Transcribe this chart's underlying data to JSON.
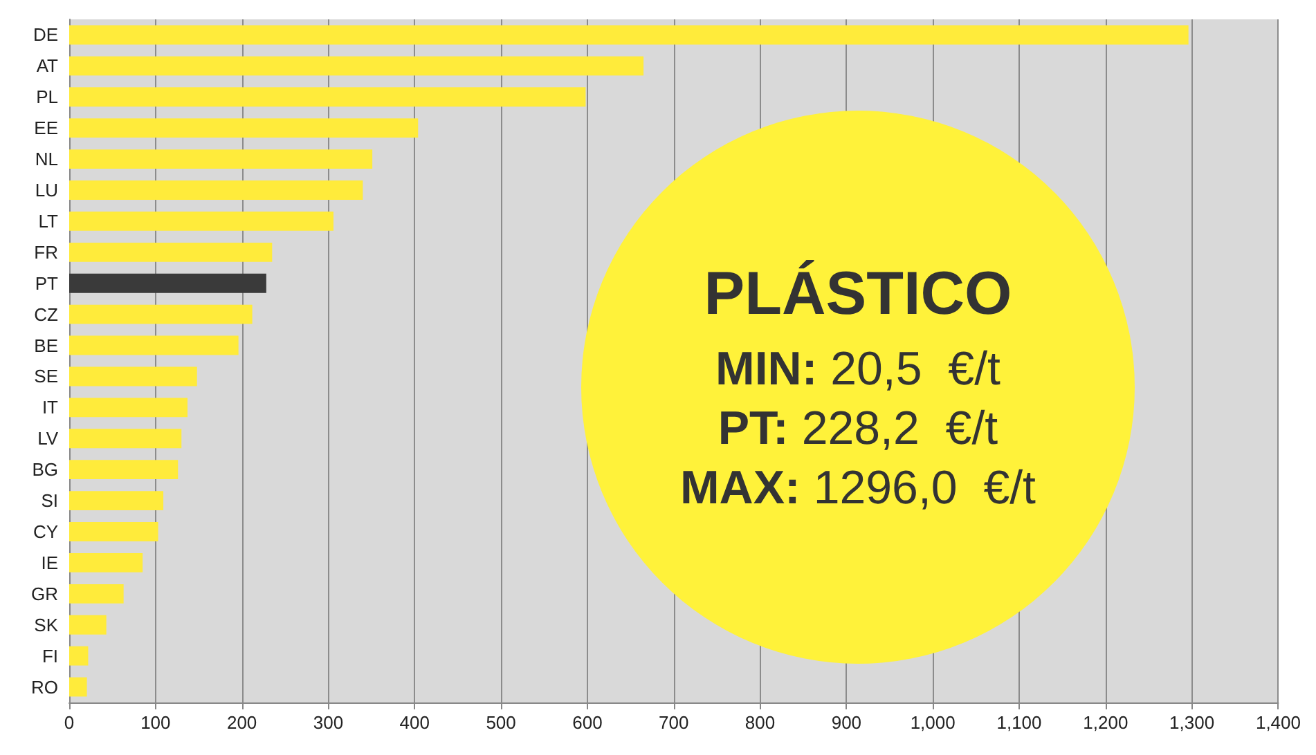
{
  "chart_data": {
    "type": "bar",
    "orientation": "horizontal",
    "categories": [
      "DE",
      "AT",
      "PL",
      "EE",
      "NL",
      "LU",
      "LT",
      "FR",
      "PT",
      "CZ",
      "BE",
      "SE",
      "IT",
      "LV",
      "BG",
      "SI",
      "CY",
      "IE",
      "GR",
      "SK",
      "FI",
      "RO"
    ],
    "values": [
      1296,
      665,
      598,
      404,
      351,
      340,
      306,
      235,
      228.2,
      212,
      196,
      148,
      137,
      130,
      126,
      109,
      103,
      85,
      63,
      43,
      22,
      20.5
    ],
    "colors": [
      "#ffeb3b",
      "#ffeb3b",
      "#ffeb3b",
      "#ffeb3b",
      "#ffeb3b",
      "#ffeb3b",
      "#ffeb3b",
      "#ffeb3b",
      "#3a3a3a",
      "#ffeb3b",
      "#ffeb3b",
      "#ffeb3b",
      "#ffeb3b",
      "#ffeb3b",
      "#ffeb3b",
      "#ffeb3b",
      "#ffeb3b",
      "#ffeb3b",
      "#ffeb3b",
      "#ffeb3b",
      "#ffeb3b",
      "#ffeb3b"
    ],
    "xlim": [
      0,
      1400
    ],
    "xticks": [
      0,
      100,
      200,
      300,
      400,
      500,
      600,
      700,
      800,
      900,
      {
        "value": 1000,
        "label": "1,000"
      },
      {
        "value": 1100,
        "label": "1,100"
      },
      {
        "value": 1200,
        "label": "1,200"
      },
      {
        "value": 1300,
        "label": "1,300"
      },
      {
        "value": 1400,
        "label": "1,400"
      }
    ],
    "grid": "x",
    "annotations": [
      "PLÁSTICO",
      "MIN: 20,5  €/t",
      "PT: 228,2  €/t",
      "MAX: 1296,0  €/t"
    ]
  }
}
